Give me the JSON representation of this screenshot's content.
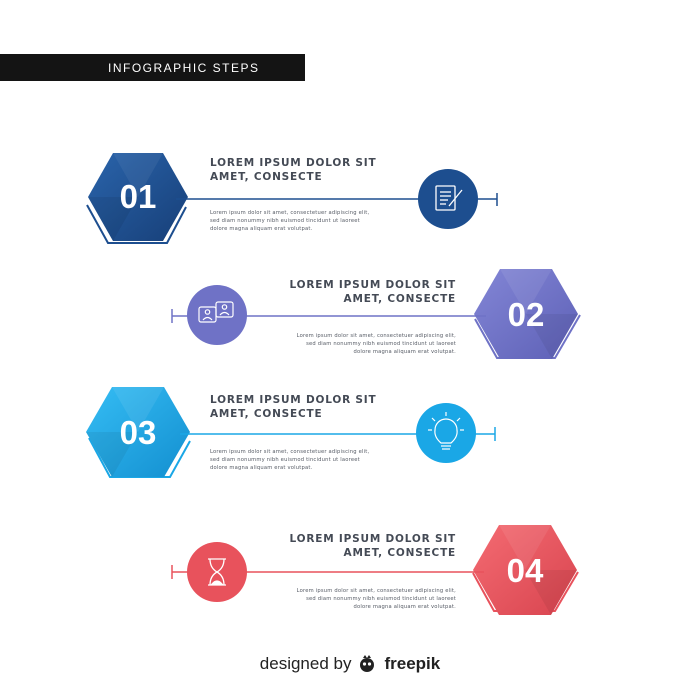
{
  "title": "INFOGRAPHIC STEPS",
  "steps": [
    {
      "number": "01",
      "heading_line1": "LOREM IPSUM DOLOR SIT",
      "heading_line2": "AMET, CONSECTE",
      "text_line1": "Lorem ipsum dolor sit amet, consectetuer adipiscing elit,",
      "text_line2": "sed diam nonummy nibh euismod tincidunt ut laoreet",
      "text_line3": "dolore magna aliquam erat volutpat.",
      "icon": "document-pen-icon",
      "color": "#1d4e8f"
    },
    {
      "number": "02",
      "heading_line1": "LOREM IPSUM DOLOR SIT",
      "heading_line2": "AMET, CONSECTE",
      "text_line1": "Lorem ipsum dolor sit amet, consectetuer adipiscing elit,",
      "text_line2": "sed diam nonummy nibh euismod tincidunt ut laoreet",
      "text_line3": "dolore magna aliquam erat volutpat.",
      "icon": "chat-users-icon",
      "color": "#6f72c6"
    },
    {
      "number": "03",
      "heading_line1": "LOREM IPSUM DOLOR SIT",
      "heading_line2": "AMET, CONSECTE",
      "text_line1": "Lorem ipsum dolor sit amet, consectetuer adipiscing elit,",
      "text_line2": "sed diam nonummy nibh euismod tincidunt ut laoreet",
      "text_line3": "dolore magna aliquam erat volutpat.",
      "icon": "lightbulb-icon",
      "color": "#1aa7e6"
    },
    {
      "number": "04",
      "heading_line1": "LOREM IPSUM DOLOR SIT",
      "heading_line2": "AMET, CONSECTE",
      "text_line1": "Lorem ipsum dolor sit amet, consectetuer adipiscing elit,",
      "text_line2": "sed diam nonummy nibh euismod tincidunt ut laoreet",
      "text_line3": "dolore magna aliquam erat volutpat.",
      "icon": "hourglass-icon",
      "color": "#e8525c"
    }
  ],
  "footer": {
    "prefix": "designed by",
    "brand": "freepik",
    "icon": "freepik-logo-icon"
  }
}
